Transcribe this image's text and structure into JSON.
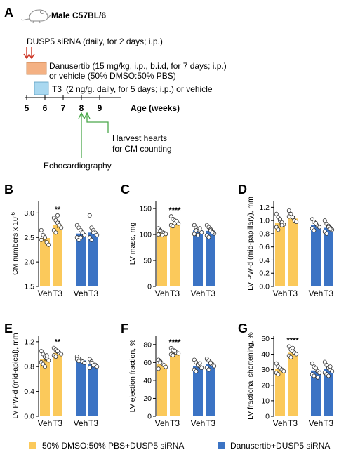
{
  "panel_a": {
    "letter": "A",
    "mouse_label": "Male C57BL/6",
    "sirna_line": "DUSP5 siRNA (daily, for 2 days; i.p.)",
    "danusertib_line1": "Danusertib (15 mg/kg, i.p., b.i.d, for 7 days; i.p.)",
    "danusertib_line2": "or vehicle (50% DMSO:50% PBS)",
    "t3_box_label": "T3",
    "t3_line": "(2 ng/g. daily, for 5 days; i.p.) or vehicle",
    "weeks": [
      "5",
      "6",
      "7",
      "8",
      "9"
    ],
    "age_label": "Age (weeks)",
    "harvest_line1": "Harvest hearts",
    "harvest_line2": "for CM counting",
    "echo_label": "Echocardiography",
    "colors": {
      "sirna_arrow": "#cc3322",
      "danusertib_box": "#f4b183",
      "t3_box": "#a9d8f0",
      "event_arrow": "#4aa84a"
    }
  },
  "legend": [
    {
      "label": "50% DMSO:50% PBS+DUSP5 siRNA",
      "color": "#fbc95b"
    },
    {
      "label": "Danusertib+DUSP5 siRNA",
      "color": "#3b73c4"
    }
  ],
  "chart_data": [
    {
      "panel": "B",
      "type": "bar",
      "ylabel": "CM numbers x 10",
      "ylabel_sup": "-6",
      "ylim": [
        1.5,
        3.25
      ],
      "yticks": [
        "1.5",
        "2.0",
        "2.5",
        "3.0"
      ],
      "ytick_values": [
        1.5,
        2.0,
        2.5,
        3.0
      ],
      "categories": [
        "Veh",
        "T3",
        "Veh",
        "T3"
      ],
      "values": [
        2.49,
        2.76,
        2.58,
        2.6
      ],
      "errors": [
        0.08,
        0.07,
        0.05,
        0.05
      ],
      "groups": [
        "50% DMSO:50% PBS+DUSP5 siRNA",
        "50% DMSO:50% PBS+DUSP5 siRNA",
        "Danusertib+DUSP5 siRNA",
        "Danusertib+DUSP5 siRNA"
      ],
      "points": [
        [
          2.65,
          2.55,
          2.5,
          2.4,
          2.35,
          2.45
        ],
        [
          2.9,
          2.85,
          2.8,
          2.75,
          2.7,
          2.65,
          2.6,
          2.95
        ],
        [
          2.75,
          2.7,
          2.65,
          2.6,
          2.55,
          2.5,
          2.45,
          2.5,
          2.6
        ],
        [
          2.95,
          2.7,
          2.65,
          2.6,
          2.55,
          2.5,
          2.45,
          2.6
        ]
      ],
      "significance": [
        "",
        "**",
        "",
        ""
      ]
    },
    {
      "panel": "C",
      "type": "bar",
      "ylabel": "LV mass, mg",
      "ylim": [
        0,
        165
      ],
      "yticks": [
        "0",
        "50",
        "100",
        "150"
      ],
      "ytick_values": [
        0,
        50,
        100,
        150
      ],
      "categories": [
        "Veh",
        "T3",
        "Veh",
        "T3"
      ],
      "values": [
        105,
        123,
        108,
        107
      ],
      "errors": [
        2,
        2.5,
        2.5,
        3
      ],
      "groups": [
        "50% DMSO:50% PBS+DUSP5 siRNA",
        "50% DMSO:50% PBS+DUSP5 siRNA",
        "Danusertib+DUSP5 siRNA",
        "Danusertib+DUSP5 siRNA"
      ],
      "points": [
        [
          112,
          108,
          105,
          103,
          101,
          100,
          107,
          99
        ],
        [
          135,
          130,
          127,
          124,
          121,
          118,
          116,
          122,
          126
        ],
        [
          118,
          113,
          110,
          107,
          104,
          101,
          108,
          99,
          112
        ],
        [
          118,
          114,
          110,
          106,
          102,
          98,
          95,
          108,
          104
        ]
      ],
      "significance": [
        "",
        "****",
        "",
        ""
      ]
    },
    {
      "panel": "D",
      "type": "bar",
      "ylabel": "LV PW-d (mid-papillary), mm",
      "ylim": [
        0,
        1.3
      ],
      "yticks": [
        "0.0",
        "0.2",
        "0.4",
        "0.6",
        "0.8",
        "1.0",
        "1.2"
      ],
      "ytick_values": [
        0,
        0.2,
        0.4,
        0.6,
        0.8,
        1.0,
        1.2
      ],
      "categories": [
        "Veh",
        "T3",
        "Veh",
        "T3"
      ],
      "values": [
        0.97,
        1.03,
        0.93,
        0.89
      ],
      "errors": [
        0.03,
        0.03,
        0.02,
        0.03
      ],
      "groups": [
        "50% DMSO:50% PBS+DUSP5 siRNA",
        "50% DMSO:50% PBS+DUSP5 siRNA",
        "Danusertib+DUSP5 siRNA",
        "Danusertib+DUSP5 siRNA"
      ],
      "points": [
        [
          1.1,
          1.05,
          1.0,
          0.97,
          0.94,
          0.9,
          0.86,
          1.02,
          0.93
        ],
        [
          1.15,
          1.1,
          1.05,
          1.0,
          0.98,
          1.06
        ],
        [
          1.02,
          0.98,
          0.95,
          0.92,
          0.9,
          0.88,
          0.85,
          0.96
        ],
        [
          1.0,
          0.95,
          0.92,
          0.89,
          0.86,
          0.83,
          0.8,
          0.9,
          0.87
        ]
      ],
      "significance": [
        "",
        "",
        "",
        ""
      ]
    },
    {
      "panel": "E",
      "type": "bar",
      "ylabel": "LV PW-d (mid-apical), mm",
      "ylim": [
        0,
        1.3
      ],
      "yticks": [
        "0.0",
        "0.4",
        "0.8",
        "1.2"
      ],
      "ytick_values": [
        0,
        0.4,
        0.8,
        1.2
      ],
      "categories": [
        "Veh",
        "T3",
        "Veh",
        "T3"
      ],
      "values": [
        0.92,
        1.02,
        0.9,
        0.84
      ],
      "errors": [
        0.03,
        0.02,
        0.02,
        0.03
      ],
      "groups": [
        "50% DMSO:50% PBS+DUSP5 siRNA",
        "50% DMSO:50% PBS+DUSP5 siRNA",
        "Danusertib+DUSP5 siRNA",
        "Danusertib+DUSP5 siRNA"
      ],
      "points": [
        [
          1.05,
          1.0,
          0.96,
          0.93,
          0.9,
          0.87,
          0.84,
          0.8,
          0.98
        ],
        [
          1.1,
          1.07,
          1.04,
          1.02,
          1.0,
          0.98,
          0.96,
          1.05
        ],
        [
          0.96,
          0.93,
          0.9,
          0.88,
          0.86,
          0.92,
          0.89
        ],
        [
          0.92,
          0.88,
          0.85,
          0.83,
          0.8,
          0.78,
          0.86,
          0.82
        ]
      ],
      "significance": [
        "",
        "**",
        "",
        ""
      ]
    },
    {
      "panel": "F",
      "type": "bar",
      "ylabel": "LV ejection fraction, %",
      "ylim": [
        0,
        90
      ],
      "yticks": [
        "0",
        "20",
        "40",
        "60",
        "80"
      ],
      "ytick_values": [
        0,
        20,
        40,
        60,
        80
      ],
      "categories": [
        "Veh",
        "T3",
        "Veh",
        "T3"
      ],
      "values": [
        58,
        71,
        56,
        58
      ],
      "errors": [
        1.5,
        1.2,
        1.5,
        1.5
      ],
      "groups": [
        "50% DMSO:50% PBS+DUSP5 siRNA",
        "50% DMSO:50% PBS+DUSP5 siRNA",
        "Danusertib+DUSP5 siRNA",
        "Danusertib+DUSP5 siRNA"
      ],
      "points": [
        [
          63,
          61,
          59,
          57,
          55,
          53,
          60
        ],
        [
          76,
          74,
          72,
          71,
          70,
          69,
          68,
          73
        ],
        [
          63,
          60,
          58,
          56,
          54,
          52,
          50,
          57,
          59
        ],
        [
          64,
          62,
          60,
          58,
          56,
          54,
          52,
          59
        ]
      ],
      "significance": [
        "",
        "****",
        "",
        ""
      ]
    },
    {
      "panel": "G",
      "type": "bar",
      "ylabel": "LV fractional shortening, %",
      "ylim": [
        0,
        52
      ],
      "yticks": [
        "0",
        "10",
        "20",
        "30",
        "40",
        "50"
      ],
      "ytick_values": [
        0,
        10,
        20,
        30,
        40,
        50
      ],
      "categories": [
        "Veh",
        "T3",
        "Veh",
        "T3"
      ],
      "values": [
        30.5,
        41,
        29.5,
        30.5
      ],
      "errors": [
        1,
        1,
        1,
        1
      ],
      "groups": [
        "50% DMSO:50% PBS+DUSP5 siRNA",
        "50% DMSO:50% PBS+DUSP5 siRNA",
        "Danusertib+DUSP5 siRNA",
        "Danusertib+DUSP5 siRNA"
      ],
      "points": [
        [
          34,
          32,
          31,
          30,
          29,
          28,
          27
        ],
        [
          45,
          43,
          42,
          41,
          40,
          39,
          38,
          44
        ],
        [
          34,
          32,
          30,
          29,
          28,
          27,
          26,
          31,
          25
        ],
        [
          35,
          33,
          31,
          30,
          29,
          28,
          27,
          26,
          32
        ]
      ],
      "significance": [
        "",
        "****",
        "",
        ""
      ]
    }
  ]
}
